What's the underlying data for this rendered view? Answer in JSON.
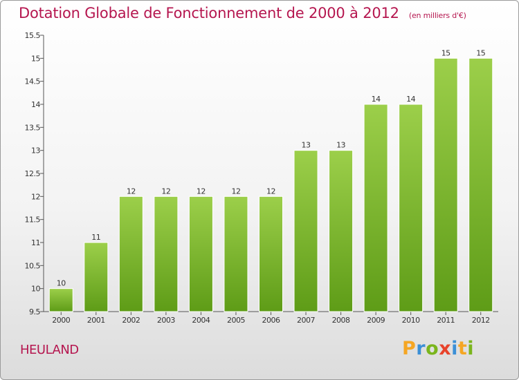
{
  "title": "Dotation Globale de Fonctionnement de 2000 à 2012",
  "unit": "(en milliers d'€)",
  "commune": "HEULAND",
  "logo": {
    "letters": [
      "P",
      "r",
      "o",
      "x",
      "i",
      "t",
      "i"
    ],
    "colors": [
      "#f5a623",
      "#3b8fd6",
      "#7ab51d",
      "#e8432b",
      "#3b8fd6",
      "#f5a623",
      "#7ab51d"
    ]
  },
  "colors": {
    "bar_light": "#9ccf4a",
    "bar_dark": "#5e9c17",
    "title": "#b5164f"
  },
  "chart_data": {
    "type": "bar",
    "categories": [
      "2000",
      "2001",
      "2002",
      "2003",
      "2004",
      "2005",
      "2006",
      "2007",
      "2008",
      "2009",
      "2010",
      "2011",
      "2012"
    ],
    "values": [
      10,
      11,
      12,
      12,
      12,
      12,
      12,
      13,
      13,
      14,
      14,
      15,
      15
    ],
    "ylim": [
      9.5,
      15.5
    ],
    "yticks": [
      "9.5",
      "10",
      "10.5",
      "11",
      "11.5",
      "12",
      "12.5",
      "13",
      "13.5",
      "14",
      "14.5",
      "15",
      "15.5"
    ],
    "grid": false,
    "data_labels": true
  }
}
